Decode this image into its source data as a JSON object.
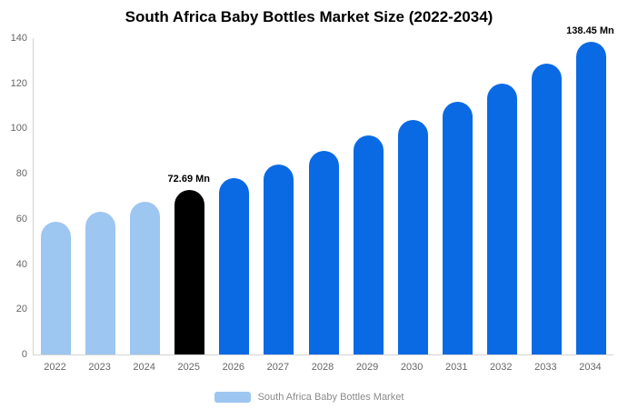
{
  "title": "South Africa Baby Bottles Market Size (2022-2034)",
  "legend": {
    "label": "South Africa Baby Bottles Market",
    "swatch_color": "#9dc6f0"
  },
  "chart_data": {
    "type": "bar",
    "title": "South Africa Baby Bottles Market Size (2022-2034)",
    "categories": [
      "2022",
      "2023",
      "2024",
      "2025",
      "2026",
      "2027",
      "2028",
      "2029",
      "2030",
      "2031",
      "2032",
      "2033",
      "2034"
    ],
    "values": [
      58.6,
      63.0,
      67.7,
      72.69,
      78.1,
      83.9,
      90.1,
      96.8,
      104.0,
      111.7,
      120.0,
      128.9,
      138.45
    ],
    "bar_colors": [
      "#9dc6f0",
      "#9dc6f0",
      "#9dc6f0",
      "#000000",
      "#0a6ae4",
      "#0a6ae4",
      "#0a6ae4",
      "#0a6ae4",
      "#0a6ae4",
      "#0a6ae4",
      "#0a6ae4",
      "#0a6ae4",
      "#0a6ae4"
    ],
    "annotations": [
      {
        "category": "2025",
        "text": "72.69 Mn"
      },
      {
        "category": "2034",
        "text": "138.45 Mn"
      }
    ],
    "xlabel": "",
    "ylabel": "",
    "ylim": [
      0,
      140
    ],
    "yticks": [
      0,
      20,
      40,
      60,
      80,
      100,
      120,
      140
    ],
    "grid": false,
    "legend_position": "bottom",
    "colors": {
      "historical": "#9dc6f0",
      "base_year": "#000000",
      "forecast": "#0a6ae4"
    }
  }
}
